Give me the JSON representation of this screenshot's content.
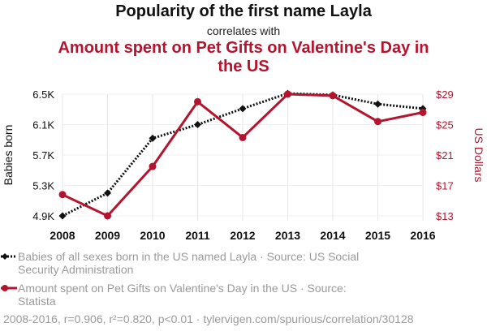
{
  "header": {
    "title": "Popularity of the first name Layla",
    "connector": "correlates with",
    "title2": "Amount spent on Pet Gifts on Valentine's Day in the US"
  },
  "chart_data": {
    "type": "line",
    "x": [
      2008,
      2009,
      2010,
      2011,
      2012,
      2013,
      2014,
      2015,
      2016
    ],
    "xlim": [
      2008,
      2016
    ],
    "y_left": {
      "label": "Babies born",
      "ticks": [
        4900,
        5300,
        5700,
        6100,
        6500
      ],
      "tick_labels": [
        "4.9K",
        "5.3K",
        "5.7K",
        "6.1K",
        "6.5K"
      ],
      "ylim": [
        4900,
        6500
      ]
    },
    "y_right": {
      "label": "US Dollars",
      "ticks": [
        13,
        17,
        21,
        25,
        29
      ],
      "tick_labels": [
        "$13",
        "$17",
        "$21",
        "$25",
        "$29"
      ],
      "ylim": [
        13,
        29
      ]
    },
    "series": [
      {
        "name": "Babies of all sexes born in the US named Layla · Source: US Social Security Administration",
        "axis": "left",
        "color": "#111111",
        "style": "dotted",
        "marker": "diamond",
        "values": [
          4900,
          5200,
          5920,
          6100,
          6310,
          6510,
          6490,
          6370,
          6310
        ]
      },
      {
        "name": "Amount spent on Pet Gifts on Valentine's Day in the US · Source: Statista",
        "axis": "right",
        "color": "#b4142e",
        "style": "solid",
        "marker": "circle",
        "values": [
          15.8,
          13.0,
          19.5,
          28.0,
          23.3,
          29.0,
          28.8,
          25.4,
          26.6
        ]
      }
    ],
    "grid": true,
    "legend_position": "bottom-left"
  },
  "footer": {
    "text": "2008-2016, r=0.906, r²=0.820, p<0.01 · tylervigen.com/spurious/correlation/30128"
  }
}
